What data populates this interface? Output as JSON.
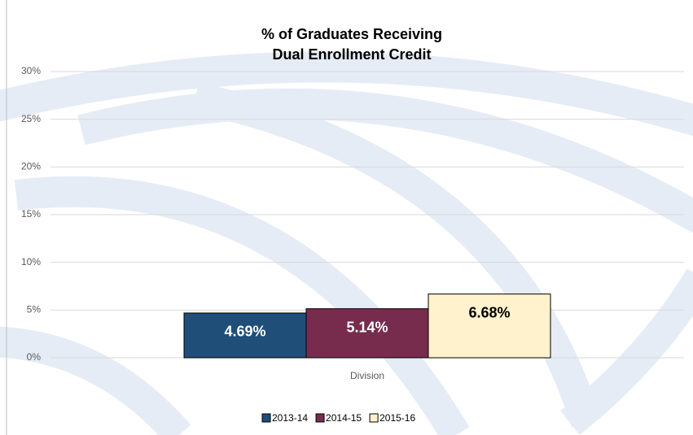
{
  "chart_data": {
    "type": "bar",
    "title": [
      "% of Graduates Receiving",
      "Dual Enrollment Credit"
    ],
    "categories": [
      "Division"
    ],
    "series": [
      {
        "name": "2013-14",
        "color": "#1f4e79",
        "values": [
          4.69
        ],
        "value_labels": [
          "4.69%"
        ]
      },
      {
        "name": "2014-15",
        "color": "#772c4e",
        "values": [
          5.14
        ],
        "value_labels": [
          "5.14%"
        ]
      },
      {
        "name": "2015-16",
        "color": "#fff2cc",
        "values": [
          6.68
        ],
        "value_labels": [
          "6.68%"
        ]
      }
    ],
    "ylim": [
      0,
      30
    ],
    "yticks": [
      {
        "value": 0,
        "label": "0%"
      },
      {
        "value": 5,
        "label": "5%"
      },
      {
        "value": 10,
        "label": "10%"
      },
      {
        "value": 15,
        "label": "15%"
      },
      {
        "value": 20,
        "label": "20%"
      },
      {
        "value": 25,
        "label": "25%"
      },
      {
        "value": 30,
        "label": "30%"
      }
    ],
    "grid": true,
    "legend": "bottom"
  }
}
